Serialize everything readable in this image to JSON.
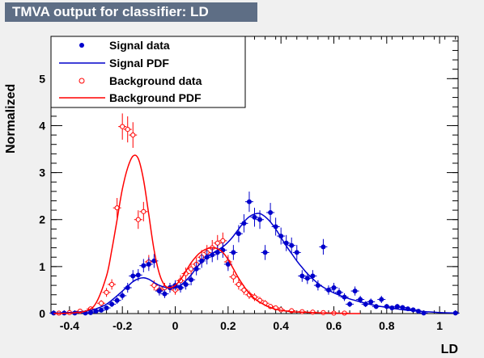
{
  "chart_data": {
    "type": "scatter",
    "title": "TMVA output for classifier: LD",
    "xlabel": "LD",
    "ylabel": "Normalized",
    "xlim": [
      -0.47,
      1.07
    ],
    "ylim": [
      0,
      5.9
    ],
    "x_ticks": [
      "-0.4",
      "-0.2",
      "0",
      "0.2",
      "0.4",
      "0.6",
      "0.8",
      "1"
    ],
    "y_ticks": [
      "0",
      "1",
      "2",
      "3",
      "4",
      "5"
    ],
    "grid": false,
    "legend_position": "top-left",
    "series": [
      {
        "name": "Signal data",
        "kind": "points",
        "marker": "filled-circle",
        "color": "#0000cc",
        "x": [
          -0.46,
          -0.42,
          -0.38,
          -0.34,
          -0.32,
          -0.3,
          -0.28,
          -0.26,
          -0.24,
          -0.22,
          -0.2,
          -0.18,
          -0.16,
          -0.14,
          -0.12,
          -0.1,
          -0.08,
          -0.06,
          -0.04,
          -0.02,
          0.0,
          0.02,
          0.04,
          0.06,
          0.08,
          0.1,
          0.12,
          0.14,
          0.16,
          0.18,
          0.2,
          0.22,
          0.24,
          0.26,
          0.28,
          0.3,
          0.32,
          0.34,
          0.36,
          0.38,
          0.4,
          0.42,
          0.44,
          0.46,
          0.48,
          0.5,
          0.52,
          0.54,
          0.56,
          0.58,
          0.6,
          0.62,
          0.64,
          0.66,
          0.68,
          0.7,
          0.72,
          0.74,
          0.76,
          0.78,
          0.8,
          0.82,
          0.84,
          0.86,
          0.88,
          0.9,
          0.92,
          0.94,
          1.06
        ],
        "y": [
          0.01,
          0.01,
          0.01,
          0.01,
          0.02,
          0.05,
          0.07,
          0.12,
          0.2,
          0.28,
          0.38,
          0.55,
          0.8,
          0.82,
          1.02,
          1.05,
          1.12,
          0.48,
          0.42,
          0.55,
          0.6,
          0.55,
          0.62,
          0.72,
          0.95,
          1.12,
          1.2,
          1.25,
          1.3,
          1.35,
          1.05,
          1.3,
          1.7,
          1.92,
          2.38,
          2.05,
          2.0,
          1.3,
          2.15,
          1.85,
          1.65,
          1.5,
          1.45,
          1.3,
          0.8,
          0.75,
          0.8,
          0.6,
          1.42,
          0.5,
          0.55,
          0.45,
          0.35,
          0.2,
          0.48,
          0.3,
          0.2,
          0.25,
          0.15,
          0.3,
          0.15,
          0.12,
          0.15,
          0.13,
          0.1,
          0.08,
          0.05,
          0.01,
          0.01
        ]
      },
      {
        "name": "Signal PDF",
        "kind": "line",
        "color": "#0000cc",
        "x": [
          -0.46,
          -0.4,
          -0.34,
          -0.3,
          -0.26,
          -0.22,
          -0.18,
          -0.16,
          -0.14,
          -0.12,
          -0.1,
          -0.08,
          -0.06,
          -0.04,
          -0.02,
          0.0,
          0.02,
          0.04,
          0.06,
          0.08,
          0.1,
          0.12,
          0.14,
          0.16,
          0.18,
          0.2,
          0.22,
          0.24,
          0.26,
          0.28,
          0.3,
          0.32,
          0.34,
          0.36,
          0.38,
          0.4,
          0.42,
          0.44,
          0.46,
          0.48,
          0.5,
          0.52,
          0.54,
          0.56,
          0.6,
          0.65,
          0.7,
          0.75,
          0.8,
          0.85,
          0.9,
          0.95,
          1.0,
          1.06
        ],
        "y": [
          0.01,
          0.02,
          0.05,
          0.1,
          0.2,
          0.38,
          0.58,
          0.68,
          0.74,
          0.76,
          0.73,
          0.66,
          0.6,
          0.56,
          0.54,
          0.55,
          0.6,
          0.7,
          0.82,
          0.97,
          1.1,
          1.2,
          1.28,
          1.35,
          1.42,
          1.52,
          1.65,
          1.8,
          1.95,
          2.06,
          2.12,
          2.13,
          2.06,
          1.95,
          1.8,
          1.62,
          1.44,
          1.28,
          1.12,
          0.98,
          0.85,
          0.74,
          0.64,
          0.56,
          0.44,
          0.33,
          0.25,
          0.18,
          0.13,
          0.09,
          0.06,
          0.04,
          0.02,
          0.01
        ]
      },
      {
        "name": "Background data",
        "kind": "points",
        "marker": "open-circle",
        "color": "#ff0000",
        "x": [
          -0.44,
          -0.4,
          -0.36,
          -0.32,
          -0.28,
          -0.26,
          -0.24,
          -0.22,
          -0.2,
          -0.18,
          -0.16,
          -0.14,
          -0.12,
          -0.1,
          -0.08,
          -0.06,
          -0.04,
          -0.02,
          0.0,
          0.02,
          0.04,
          0.06,
          0.08,
          0.1,
          0.12,
          0.14,
          0.16,
          0.18,
          0.2,
          0.22,
          0.24,
          0.26,
          0.28,
          0.3,
          0.32,
          0.34,
          0.36,
          0.38,
          0.4,
          0.44,
          0.48,
          0.52,
          0.56,
          0.6,
          0.64
        ],
        "y": [
          0.01,
          0.02,
          0.05,
          0.1,
          0.22,
          0.45,
          0.62,
          2.25,
          3.98,
          3.92,
          3.8,
          2.0,
          2.17,
          1.1,
          0.6,
          0.5,
          0.55,
          0.55,
          0.5,
          0.7,
          0.85,
          0.95,
          1.05,
          1.2,
          1.3,
          1.4,
          1.5,
          1.55,
          1.1,
          0.78,
          0.62,
          0.5,
          0.4,
          0.35,
          0.28,
          0.22,
          0.15,
          0.12,
          0.08,
          0.06,
          0.04,
          0.03,
          0.02,
          0.01,
          0.01
        ]
      },
      {
        "name": "Background PDF",
        "kind": "line",
        "color": "#ff0000",
        "x": [
          -0.46,
          -0.4,
          -0.34,
          -0.3,
          -0.26,
          -0.24,
          -0.22,
          -0.2,
          -0.18,
          -0.16,
          -0.14,
          -0.12,
          -0.1,
          -0.08,
          -0.06,
          -0.04,
          -0.02,
          0.0,
          0.02,
          0.04,
          0.06,
          0.08,
          0.1,
          0.12,
          0.14,
          0.16,
          0.18,
          0.2,
          0.22,
          0.24,
          0.26,
          0.28,
          0.3,
          0.32,
          0.34,
          0.36,
          0.38,
          0.4,
          0.44,
          0.48,
          0.52,
          0.56,
          0.6,
          0.65,
          0.7
        ],
        "y": [
          0.0,
          0.01,
          0.05,
          0.22,
          0.8,
          1.35,
          2.0,
          2.65,
          3.1,
          3.35,
          3.3,
          2.85,
          2.1,
          1.35,
          0.85,
          0.6,
          0.55,
          0.6,
          0.72,
          0.9,
          1.08,
          1.22,
          1.32,
          1.38,
          1.4,
          1.38,
          1.3,
          1.15,
          0.95,
          0.75,
          0.58,
          0.43,
          0.32,
          0.24,
          0.18,
          0.13,
          0.09,
          0.07,
          0.04,
          0.03,
          0.02,
          0.01,
          0.01,
          0.0,
          0.0
        ]
      }
    ]
  },
  "colors": {
    "background": "#f0f0f0",
    "title_box": "#5e6e85",
    "title_text": "#ffffff",
    "signal": "#0000cc",
    "background_series": "#ff0000"
  }
}
